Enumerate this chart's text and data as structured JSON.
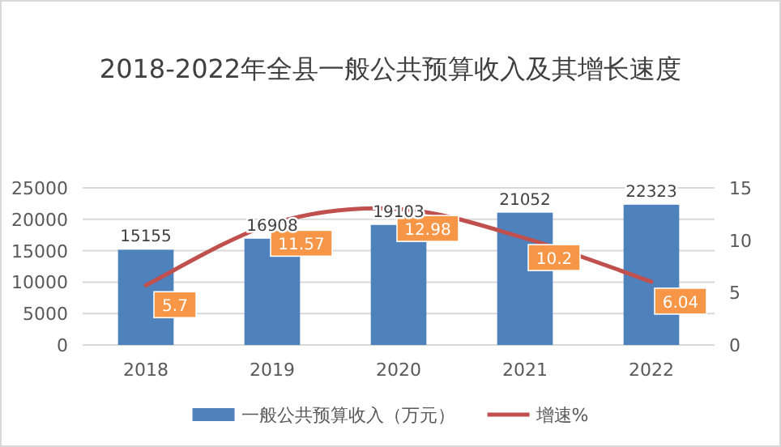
{
  "chart_data": {
    "type": "bar",
    "title": "2018-2022年全县一般公共预算收入及其增长速度",
    "categories": [
      "2018",
      "2019",
      "2020",
      "2021",
      "2022"
    ],
    "series": [
      {
        "name": "一般公共预算收入（万元）",
        "color": "#4f81bd",
        "values": [
          15155,
          16908,
          19103,
          21052,
          22323
        ]
      },
      {
        "name": "增速%",
        "type": "line",
        "axis": "y2",
        "color": "#c0504d",
        "values": [
          5.7,
          11.57,
          12.98,
          10.2,
          6.04
        ]
      }
    ],
    "ylim": [
      0,
      25000
    ],
    "yticks": [
      0,
      5000,
      10000,
      15000,
      20000,
      25000
    ],
    "y2lim": [
      0,
      15
    ],
    "y2ticks": [
      0,
      5,
      10,
      15
    ],
    "grid": "y",
    "legend": "bottom",
    "data_labels": true
  }
}
